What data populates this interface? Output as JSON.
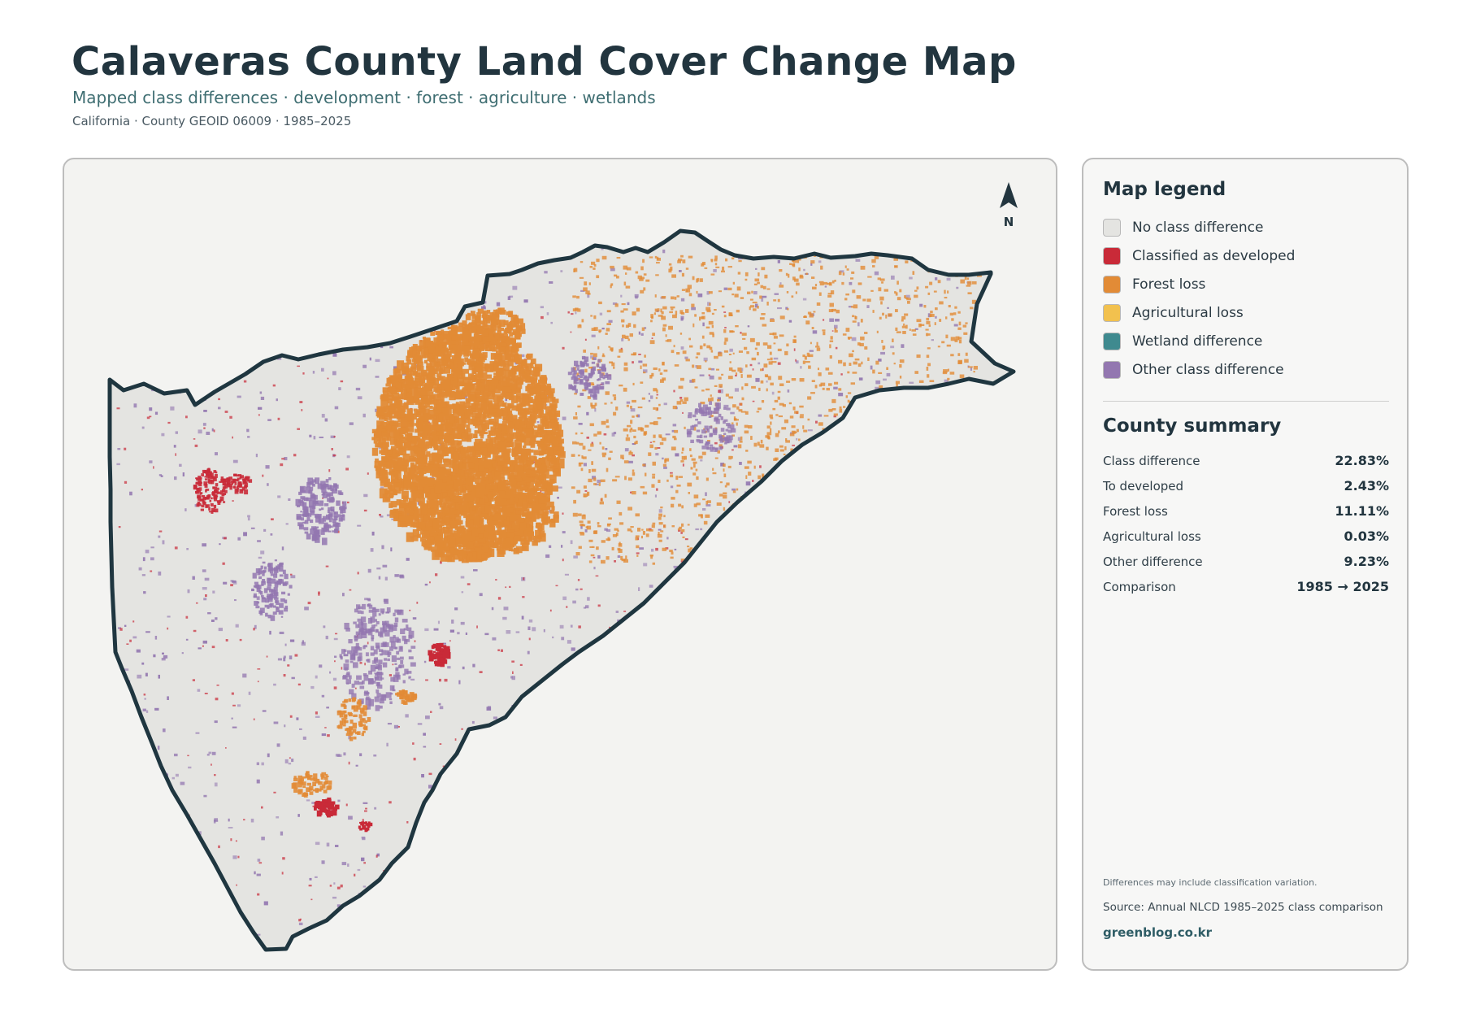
{
  "header": {
    "title": "Calaveras County Land Cover Change Map",
    "subtitle": "Mapped class differences · development · forest · agriculture · wetlands",
    "meta": "California · County GEOID 06009 · 1985–2025"
  },
  "map": {
    "north_label": "N",
    "colors": {
      "no_difference": "#e4e4e1",
      "developed": "#c92a38",
      "forest_loss": "#e28b36",
      "agricultural_loss": "#f2c14e",
      "wetland": "#3f8a8f",
      "other": "#9377b0",
      "boundary": "#1f3640"
    }
  },
  "legend": {
    "title": "Map legend",
    "items": [
      {
        "label": "No class difference",
        "color": "#e4e4e1"
      },
      {
        "label": "Classified as developed",
        "color": "#c92a38"
      },
      {
        "label": "Forest loss",
        "color": "#e28b36"
      },
      {
        "label": "Agricultural loss",
        "color": "#f2c14e"
      },
      {
        "label": "Wetland difference",
        "color": "#3f8a8f"
      },
      {
        "label": "Other class difference",
        "color": "#9377b0"
      }
    ]
  },
  "summary": {
    "title": "County summary",
    "rows": [
      {
        "label": "Class difference",
        "value": "22.83%"
      },
      {
        "label": "To developed",
        "value": "2.43%"
      },
      {
        "label": "Forest loss",
        "value": "11.11%"
      },
      {
        "label": "Agricultural loss",
        "value": "0.03%"
      },
      {
        "label": "Other difference",
        "value": "9.23%"
      },
      {
        "label": "Comparison",
        "value": "1985 → 2025"
      }
    ]
  },
  "footer": {
    "note": "Differences may include classification variation.",
    "source": "Source: Annual NLCD 1985–2025 class comparison",
    "site": "greenblog.co.kr"
  }
}
